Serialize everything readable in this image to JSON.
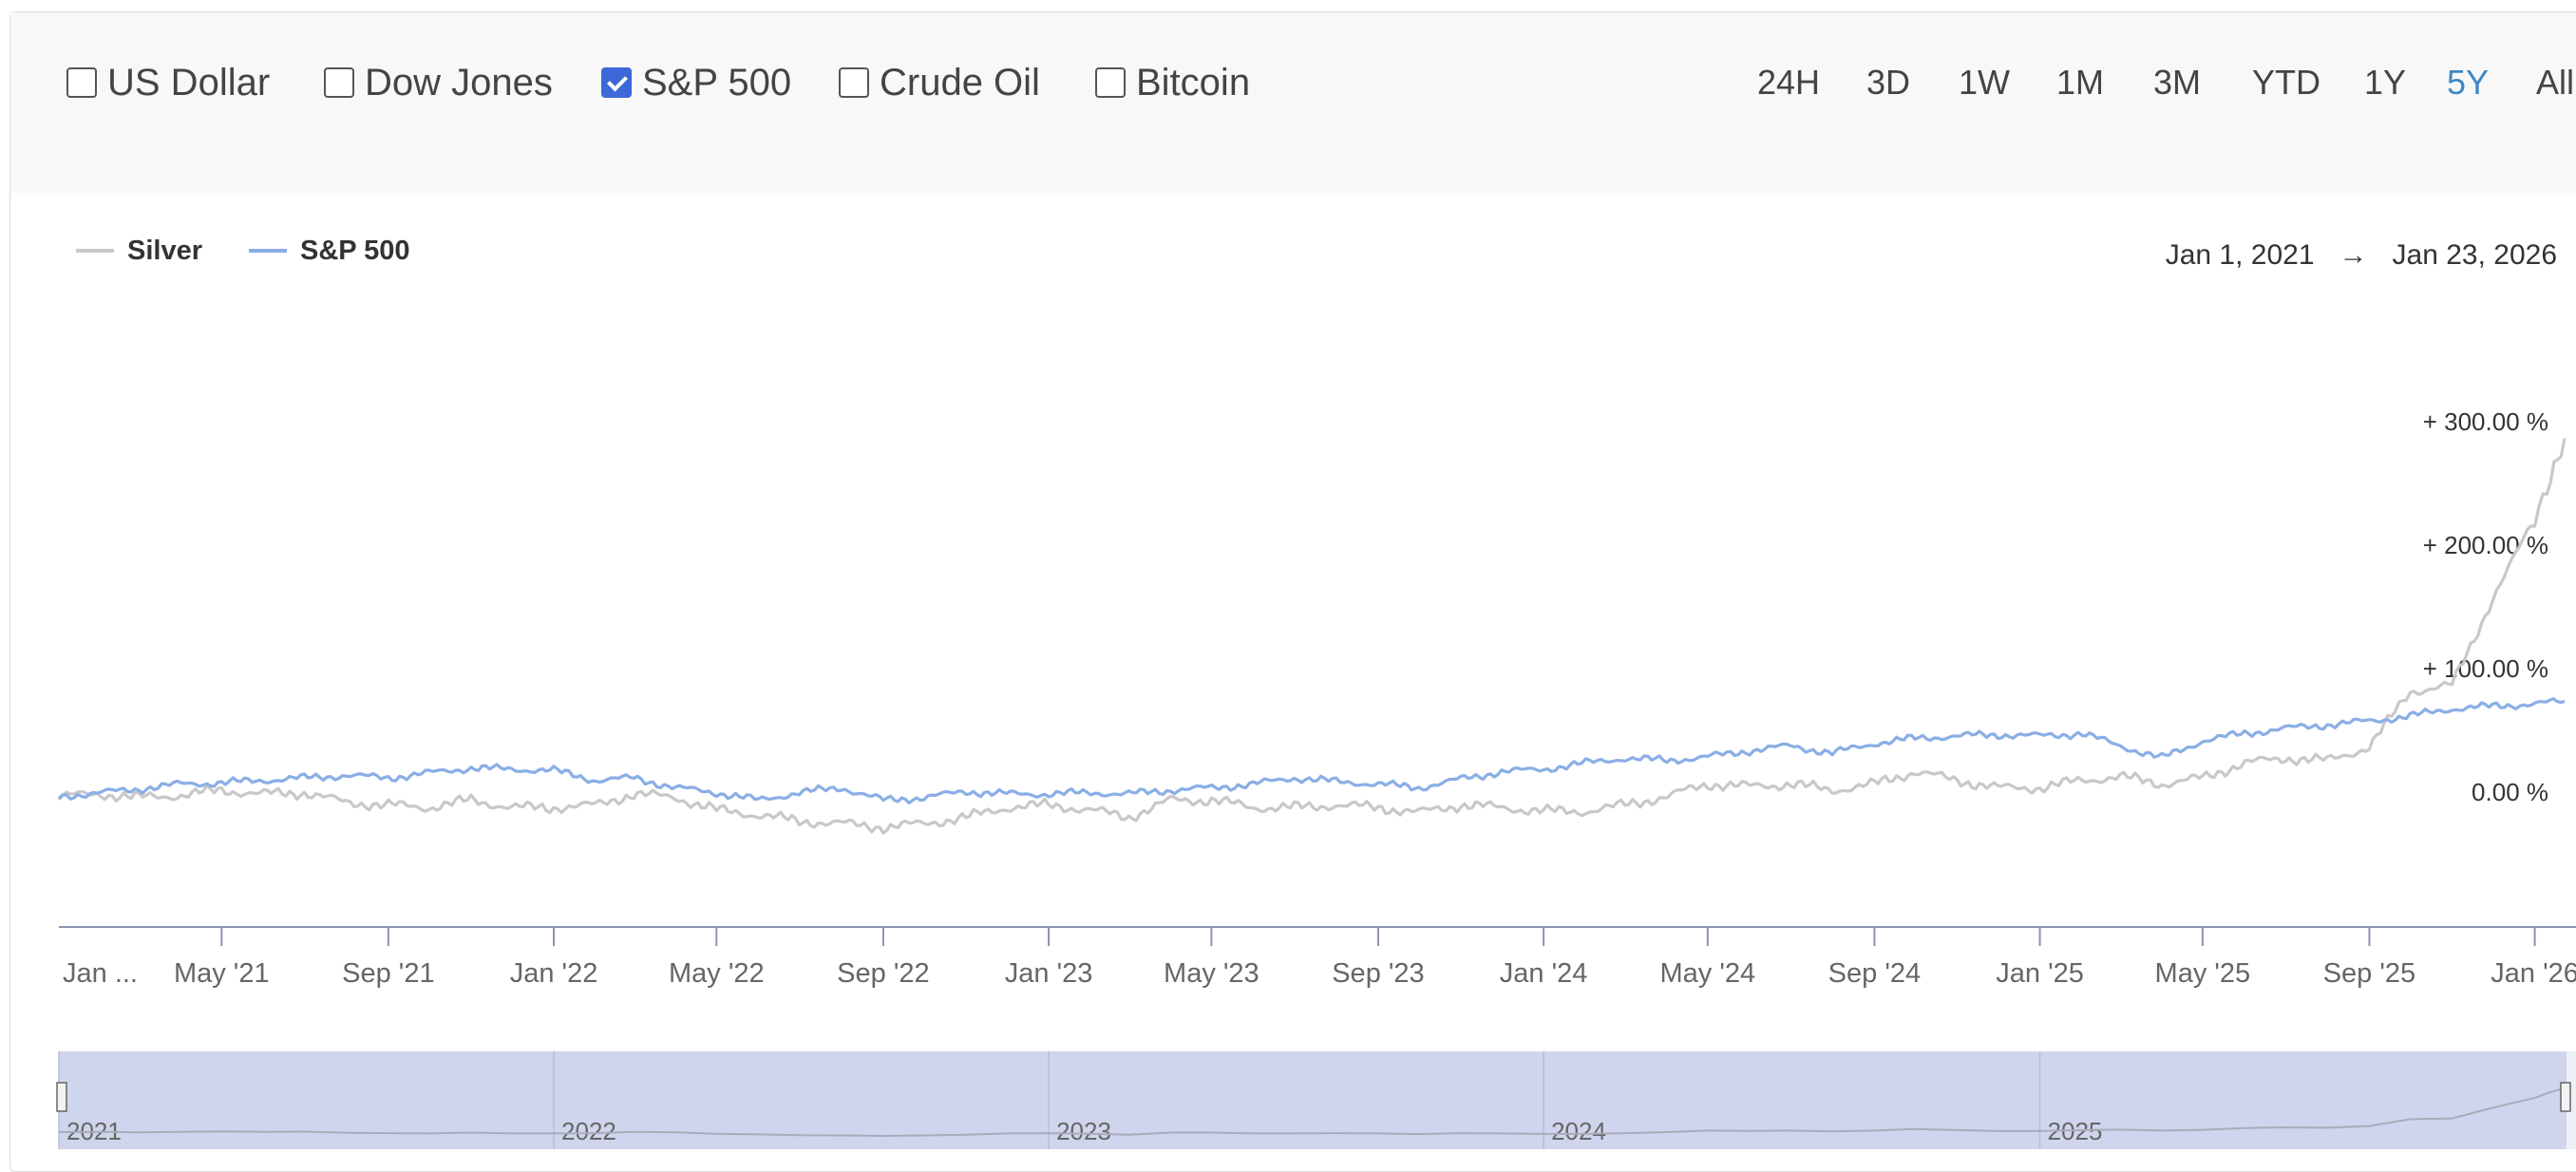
{
  "toolbar": {
    "assets": [
      {
        "label": "US Dollar",
        "checked": false
      },
      {
        "label": "Dow Jones",
        "checked": false
      },
      {
        "label": "S&P 500",
        "checked": true
      },
      {
        "label": "Crude Oil",
        "checked": false
      },
      {
        "label": "Bitcoin",
        "checked": false
      }
    ],
    "ranges": [
      "24H",
      "3D",
      "1W",
      "1M",
      "3M",
      "YTD",
      "1Y",
      "5Y",
      "All"
    ],
    "active_range": "5Y"
  },
  "date_range": {
    "from": "Jan 1, 2021",
    "arrow": "→",
    "to": "Jan 23, 2026"
  },
  "colors": {
    "silver": "#c8c8c8",
    "sp500": "#8aaee6",
    "navigator": "#cfd5ec",
    "active": "#3f88c5"
  },
  "chart_data": {
    "type": "line",
    "xlabel": "",
    "ylabel": "",
    "x_range": [
      "2021-01-01",
      "2026-01-23"
    ],
    "y_range": [
      -30,
      300
    ],
    "y_ticks": [
      {
        "value": 0,
        "label": "0.00 %"
      },
      {
        "value": 100,
        "label": "+ 100.00 %"
      },
      {
        "value": 200,
        "label": "+ 200.00 %"
      },
      {
        "value": 300,
        "label": "+ 300.00 %"
      }
    ],
    "x_ticks": [
      {
        "date": "2021-01-01",
        "label": "Jan ..."
      },
      {
        "date": "2021-05-01",
        "label": "May '21"
      },
      {
        "date": "2021-09-01",
        "label": "Sep '21"
      },
      {
        "date": "2022-01-01",
        "label": "Jan '22"
      },
      {
        "date": "2022-05-01",
        "label": "May '22"
      },
      {
        "date": "2022-09-01",
        "label": "Sep '22"
      },
      {
        "date": "2023-01-01",
        "label": "Jan '23"
      },
      {
        "date": "2023-05-01",
        "label": "May '23"
      },
      {
        "date": "2023-09-01",
        "label": "Sep '23"
      },
      {
        "date": "2024-01-01",
        "label": "Jan '24"
      },
      {
        "date": "2024-05-01",
        "label": "May '24"
      },
      {
        "date": "2024-09-01",
        "label": "Sep '24"
      },
      {
        "date": "2025-01-01",
        "label": "Jan '25"
      },
      {
        "date": "2025-05-01",
        "label": "May '25"
      },
      {
        "date": "2025-09-01",
        "label": "Sep '25"
      },
      {
        "date": "2026-01-01",
        "label": "Jan '26"
      }
    ],
    "legend": {
      "placement": "top-left"
    },
    "grid": false,
    "series": [
      {
        "name": "Silver",
        "color": "#c8c8c8",
        "points": [
          [
            "2021-01-01",
            -5
          ],
          [
            "2021-02-01",
            -3
          ],
          [
            "2021-03-01",
            -6
          ],
          [
            "2021-04-01",
            -4
          ],
          [
            "2021-05-01",
            0
          ],
          [
            "2021-06-01",
            -3
          ],
          [
            "2021-07-01",
            -2
          ],
          [
            "2021-08-01",
            -10
          ],
          [
            "2021-09-01",
            -12
          ],
          [
            "2021-10-01",
            -14
          ],
          [
            "2021-11-01",
            -8
          ],
          [
            "2021-12-01",
            -14
          ],
          [
            "2022-01-01",
            -14
          ],
          [
            "2022-02-01",
            -12
          ],
          [
            "2022-03-01",
            -3
          ],
          [
            "2022-04-01",
            -6
          ],
          [
            "2022-05-01",
            -16
          ],
          [
            "2022-06-01",
            -20
          ],
          [
            "2022-07-01",
            -25
          ],
          [
            "2022-08-01",
            -27
          ],
          [
            "2022-09-01",
            -30
          ],
          [
            "2022-10-01",
            -27
          ],
          [
            "2022-11-01",
            -22
          ],
          [
            "2022-12-01",
            -14
          ],
          [
            "2023-01-01",
            -12
          ],
          [
            "2023-02-01",
            -16
          ],
          [
            "2023-03-01",
            -22
          ],
          [
            "2023-04-01",
            -8
          ],
          [
            "2023-05-01",
            -8
          ],
          [
            "2023-06-01",
            -14
          ],
          [
            "2023-07-01",
            -14
          ],
          [
            "2023-08-01",
            -12
          ],
          [
            "2023-09-01",
            -14
          ],
          [
            "2023-10-01",
            -18
          ],
          [
            "2023-11-01",
            -12
          ],
          [
            "2023-12-01",
            -14
          ],
          [
            "2024-01-01",
            -17
          ],
          [
            "2024-02-01",
            -17
          ],
          [
            "2024-03-01",
            -12
          ],
          [
            "2024-04-01",
            -5
          ],
          [
            "2024-05-01",
            5
          ],
          [
            "2024-06-01",
            3
          ],
          [
            "2024-07-01",
            5
          ],
          [
            "2024-08-01",
            0
          ],
          [
            "2024-09-01",
            5
          ],
          [
            "2024-10-01",
            15
          ],
          [
            "2024-11-01",
            8
          ],
          [
            "2024-12-01",
            2
          ],
          [
            "2025-01-01",
            2
          ],
          [
            "2025-02-01",
            8
          ],
          [
            "2025-03-01",
            11
          ],
          [
            "2025-04-01",
            5
          ],
          [
            "2025-05-01",
            10
          ],
          [
            "2025-06-01",
            22
          ],
          [
            "2025-07-01",
            26
          ],
          [
            "2025-08-01",
            24
          ],
          [
            "2025-09-01",
            35
          ],
          [
            "2025-10-01",
            80
          ],
          [
            "2025-11-01",
            85
          ],
          [
            "2025-12-01",
            155
          ],
          [
            "2026-01-01",
            220
          ],
          [
            "2026-01-10",
            250
          ],
          [
            "2026-01-23",
            285
          ]
        ]
      },
      {
        "name": "S&P 500",
        "color": "#8aaee6",
        "points": [
          [
            "2021-01-01",
            -5
          ],
          [
            "2021-02-01",
            -2
          ],
          [
            "2021-03-01",
            1
          ],
          [
            "2021-04-01",
            5
          ],
          [
            "2021-05-01",
            6
          ],
          [
            "2021-06-01",
            8
          ],
          [
            "2021-07-01",
            10
          ],
          [
            "2021-08-01",
            12
          ],
          [
            "2021-09-01",
            10
          ],
          [
            "2021-10-01",
            14
          ],
          [
            "2021-11-01",
            18
          ],
          [
            "2021-12-01",
            17
          ],
          [
            "2022-01-01",
            16
          ],
          [
            "2022-02-01",
            8
          ],
          [
            "2022-03-01",
            10
          ],
          [
            "2022-04-01",
            2
          ],
          [
            "2022-05-01",
            -2
          ],
          [
            "2022-06-01",
            -8
          ],
          [
            "2022-07-01",
            -2
          ],
          [
            "2022-08-01",
            2
          ],
          [
            "2022-09-01",
            -8
          ],
          [
            "2022-10-01",
            -6
          ],
          [
            "2022-11-01",
            -1
          ],
          [
            "2022-12-01",
            -3
          ],
          [
            "2023-01-01",
            -3
          ],
          [
            "2023-02-01",
            -2
          ],
          [
            "2023-03-01",
            -3
          ],
          [
            "2023-04-01",
            0
          ],
          [
            "2023-05-01",
            2
          ],
          [
            "2023-06-01",
            5
          ],
          [
            "2023-07-01",
            10
          ],
          [
            "2023-08-01",
            7
          ],
          [
            "2023-09-01",
            5
          ],
          [
            "2023-10-01",
            2
          ],
          [
            "2023-11-01",
            9
          ],
          [
            "2023-12-01",
            15
          ],
          [
            "2024-01-01",
            17
          ],
          [
            "2024-02-01",
            22
          ],
          [
            "2024-03-01",
            26
          ],
          [
            "2024-04-01",
            24
          ],
          [
            "2024-05-01",
            27
          ],
          [
            "2024-06-01",
            32
          ],
          [
            "2024-07-01",
            36
          ],
          [
            "2024-08-01",
            30
          ],
          [
            "2024-09-01",
            38
          ],
          [
            "2024-10-01",
            42
          ],
          [
            "2024-11-01",
            44
          ],
          [
            "2024-12-01",
            45
          ],
          [
            "2025-01-01",
            44
          ],
          [
            "2025-02-01",
            46
          ],
          [
            "2025-03-01",
            36
          ],
          [
            "2025-04-01",
            26
          ],
          [
            "2025-05-01",
            40
          ],
          [
            "2025-06-01",
            46
          ],
          [
            "2025-07-01",
            50
          ],
          [
            "2025-08-01",
            53
          ],
          [
            "2025-09-01",
            56
          ],
          [
            "2025-10-01",
            60
          ],
          [
            "2025-11-01",
            66
          ],
          [
            "2025-12-01",
            68
          ],
          [
            "2026-01-01",
            70
          ],
          [
            "2026-01-23",
            72
          ]
        ]
      }
    ]
  },
  "navigator": {
    "years": [
      "2021",
      "2022",
      "2023",
      "2024",
      "2025"
    ]
  }
}
